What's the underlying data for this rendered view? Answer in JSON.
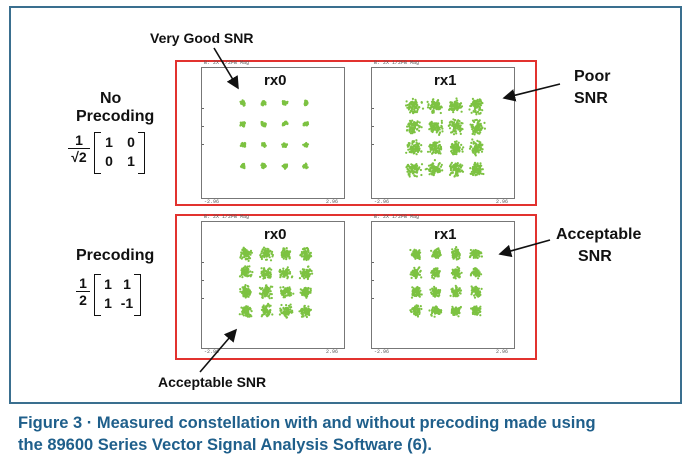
{
  "annotations": {
    "very_good": "Very Good SNR",
    "poor_line1": "Poor",
    "poor_line2": "SNR",
    "acceptable_right_line1": "Acceptable",
    "acceptable_right_line2": "SNR",
    "acceptable_bottom": "Acceptable SNR"
  },
  "rows": {
    "top": {
      "heading_line1": "No",
      "heading_line2": "Precoding",
      "scale_num": "1",
      "scale_den": "√2",
      "matrix": [
        [
          "1",
          "0"
        ],
        [
          "0",
          "1"
        ]
      ]
    },
    "bottom": {
      "heading_line1": "Precoding",
      "scale_num": "1",
      "scale_den": "2",
      "matrix": [
        [
          "1",
          "1"
        ],
        [
          "1",
          "-1"
        ]
      ]
    }
  },
  "plots": {
    "top_left": {
      "label": "rx0",
      "header": "B: 2X 1/2FB Mag",
      "xmin": "-2.96",
      "xmax": "2.96"
    },
    "top_right": {
      "label": "rx1",
      "header": "B: 2X 1/2FB Mag",
      "xmin": "-2.96",
      "xmax": "2.96"
    },
    "bot_left": {
      "label": "rx0",
      "header": "B: 2X 1/2FB Mag",
      "xmin": "-2.96",
      "xmax": "2.96"
    },
    "bot_right": {
      "label": "rx1",
      "header": "B: 2X 1/2FB Mag",
      "xmin": "-2.96",
      "xmax": "2.96"
    }
  },
  "colors": {
    "points": "#7dc242",
    "box": "#e2322f",
    "caption": "#1f5f8b"
  },
  "caption": {
    "line1": "Figure 3 · Measured constellation with and without precoding made using",
    "line2": "the 89600 Series Vector Signal Analysis Software (6)."
  }
}
